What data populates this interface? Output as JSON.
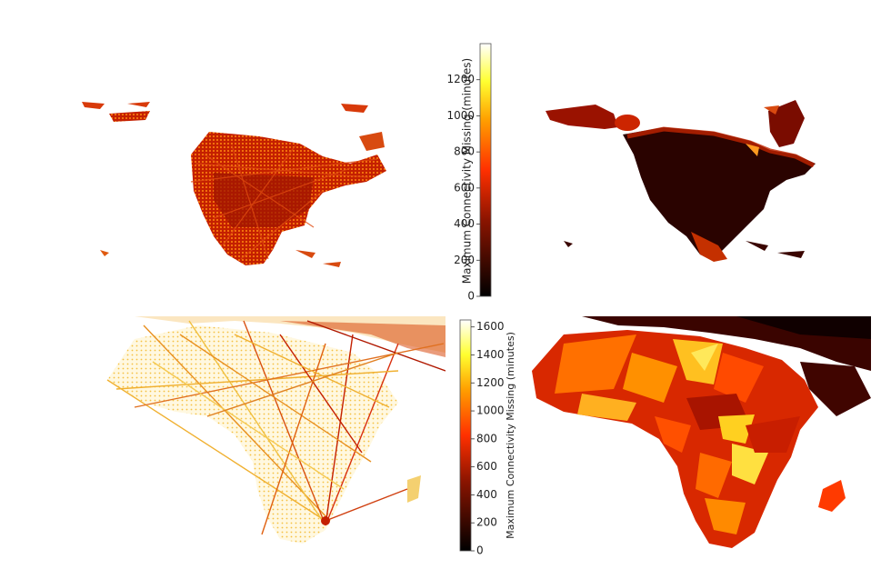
{
  "colorbar_top": {
    "label": "Maximum Connectivity Missing (minutes)",
    "min": 0,
    "max": 1400,
    "ticks": [
      "0",
      "200",
      "400",
      "600",
      "800",
      "1000",
      "1200"
    ]
  },
  "colorbar_bottom": {
    "label": "Maximum Connectivity Missing (minutes)",
    "min": 0,
    "max": 1650,
    "ticks": [
      "0",
      "200",
      "400",
      "600",
      "800",
      "1000",
      "1200",
      "1400",
      "1600"
    ]
  },
  "colormap": "afmhot (black-red-orange-yellow-white)",
  "colors": {
    "black": "#000000",
    "dark_red": "#5a0a00",
    "red": "#c42000",
    "orange": "#ff7a00",
    "yellow": "#ffe030",
    "white": "#ffffff"
  },
  "panels": [
    {
      "region": "North America",
      "style": "flight-route points"
    },
    {
      "region": "North America",
      "style": "interpolated surface"
    },
    {
      "region": "Africa",
      "style": "flight-route points"
    },
    {
      "region": "Africa",
      "style": "interpolated surface"
    }
  ]
}
